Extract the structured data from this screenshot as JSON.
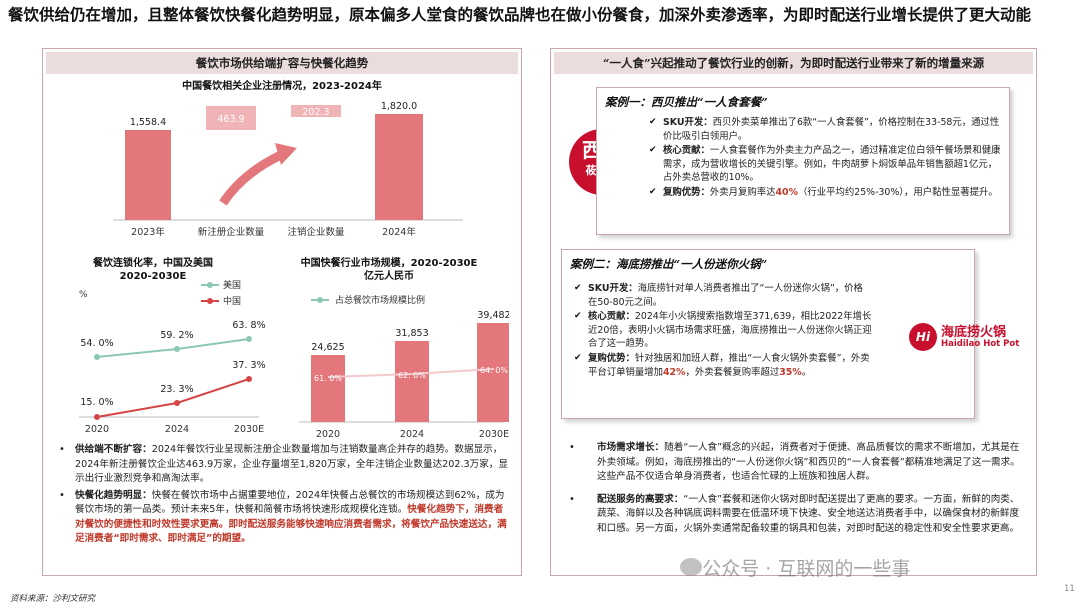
{
  "headline": "餐饮供给仍在增加，且整体餐饮快餐化趋势明显，原本偏多人堂食的餐饮品牌也在做小份餐食，加深外卖渗透率，为即时配送行业增长提供了更大动能",
  "left": {
    "title": "餐饮市场供给端扩容与快餐化趋势",
    "chart1": {
      "title": "中国餐饮相关企业注册情况，2023-2024年",
      "bars": [
        {
          "label": "2023年",
          "value": "1,558.4"
        },
        {
          "label": "新注册企业数量",
          "value": "463.9"
        },
        {
          "label": "注销企业数量",
          "value": "202.3"
        },
        {
          "label": "2024年",
          "value": "1,820.0"
        }
      ]
    },
    "chart2": {
      "title": "餐饮连锁化率，中国及美国",
      "subtitle": "2020-2030E",
      "unit": "%",
      "legend": [
        "美国",
        "中国"
      ],
      "x": [
        "2020",
        "2024",
        "2030E"
      ],
      "usa": [
        "54. 0%",
        "59. 2%",
        "63. 8%"
      ],
      "china": [
        "15. 0%",
        "23. 3%",
        "37. 3%"
      ]
    },
    "chart3": {
      "title": "中国快餐行业市场规模，2020-2030E",
      "subtitle": "亿元人民币",
      "legend": "占总餐饮市场规模比例",
      "x": [
        "2020",
        "2024",
        "2030E"
      ],
      "values": [
        "24,625",
        "31,853",
        "39,482"
      ],
      "shares": [
        "61. 0%",
        "62. 0%",
        "64. 0%"
      ]
    },
    "bullets": [
      {
        "head": "供给端不断扩容：",
        "text": "2024年餐饮行业呈现新注册企业数量增加与注销数量高企并存的趋势。数据显示，2024年新注册餐饮企业达463.9万家，企业存量增至1,820万家，全年注销企业数量达202.3万家，显示出行业激烈竞争和高淘汰率。"
      },
      {
        "head": "快餐化趋势明显：",
        "text": "快餐在餐饮市场中占据重要地位，2024年快餐占总餐饮的市场规模达到62%，成为餐饮市场的第一品类。预计未来5年，快餐和简餐市场将快速形成规模化连锁。",
        "red": "快餐化趋势下，消费者对餐饮的便捷性和时效性要求更高。即时配送服务能够快速响应消费者需求，将餐饮产品快速送达，满足消费者“即时需求、即时满足”的期望。"
      }
    ]
  },
  "right": {
    "title": "“一人食”兴起推动了餐饮行业的创新，为即时配送行业带来了新的增量来源",
    "case1": {
      "title": "案例一：西贝推出“一人食套餐”",
      "logo_l1": "西贝",
      "logo_l2": "莜面村",
      "items": [
        {
          "head": "SKU开发：",
          "text": "西贝外卖菜单推出了6款“一人食套餐”，价格控制在33-58元，通过性价比吸引白领用户。"
        },
        {
          "head": "核心贡献：",
          "text": "一人食套餐作为外卖主力产品之一，通过精准定位白领午餐场景和健康需求，成为营收增长的关键引擎。例如，牛肉胡萝卜焖饭单品年销售额超1亿元，占外卖总营收的10%。"
        },
        {
          "head": "复购优势：",
          "text_a": "外卖月复购率达",
          "red": "40%",
          "text_b": "（行业平均约25%-30%），用户黏性显著提升。"
        }
      ]
    },
    "case2": {
      "title": "案例二：海底捞推出“一人份迷你火锅”",
      "logo_mark": "Hi",
      "logo_cn": "海底捞火锅",
      "logo_en": "Haidilao Hot Pot",
      "items": [
        {
          "head": "SKU开发：",
          "text": "海底捞针对单人消费者推出了“一人份迷你火锅”，价格在50-80元之间。"
        },
        {
          "head": "核心贡献：",
          "text": "2024年小火锅搜索指数增至371,639，相比2022年增长近20倍，表明小火锅市场需求旺盛，海底捞推出一人份迷你火锅正迎合了这一趋势。"
        },
        {
          "head": "复购优势：",
          "text_a": "针对独居和加班人群，推出“一人食火锅外卖套餐”，外卖平台订单销量增加",
          "red": "42%",
          "text_b": "，外卖套餐复购率超过",
          "red2": "35%",
          "text_c": "。"
        }
      ]
    },
    "bullets": [
      {
        "head": "市场需求增长：",
        "text": "随着“一人食”概念的兴起，消费者对于便捷、高品质餐饮的需求不断增加，尤其是在外卖领域。例如，海底捞推出的“一人份迷你火锅”和西贝的“一人食套餐”都精准地满足了这一需求。这些产品不仅适合单身消费者，也适合忙碌的上班族和独居人群。"
      },
      {
        "head": "配送服务的高要求：",
        "text": "“一人食”套餐和迷你火锅对即时配送提出了更高的要求。一方面，新鲜的肉类、蔬菜、海鲜以及各种锅底调料需要在低温环境下快速、安全地送达消费者手中，以确保食材的新鲜度和口感。另一方面，火锅外卖通常配备较重的锅具和包装，对即时配送的稳定性和安全性要求更高。"
      }
    ]
  },
  "footer": {
    "source": "资料来源：沙利文研究",
    "page": "11",
    "watermark": "公众号 · 互联网的一些事"
  },
  "colors": {
    "accent": "#c8102e",
    "bar_red": "#e4777c",
    "bar_pink": "#f0b3b6",
    "usa_line": "#8cc7b7",
    "china_line": "#d64545",
    "title_bg": "#ebdcdd"
  }
}
